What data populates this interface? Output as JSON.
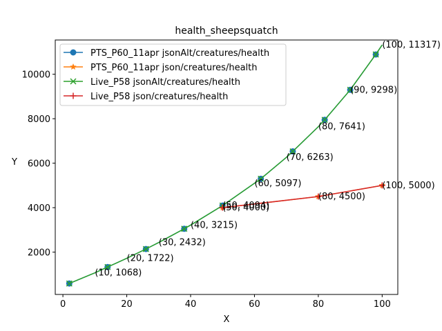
{
  "chart_data": {
    "type": "line",
    "title": "health_sheepsquatch",
    "xlabel": "X",
    "ylabel": "Y",
    "xlim": [
      -2.4,
      104.9
    ],
    "ylim": [
      97,
      11540
    ],
    "xticks": [
      0,
      20,
      40,
      60,
      80,
      100
    ],
    "yticks": [
      2000,
      4000,
      6000,
      8000,
      10000
    ],
    "xtick_labels": [
      "0",
      "20",
      "40",
      "60",
      "80",
      "100"
    ],
    "ytick_labels": [
      "2000",
      "4000",
      "6000",
      "8000",
      "10000"
    ],
    "legend_position": "upper-left",
    "series": [
      {
        "name": "PTS_P60_11apr jsonAlt/creatures/health",
        "color": "#1f77b4",
        "marker": "circle",
        "x": [
          2,
          10,
          14,
          20,
          26,
          30,
          38,
          40,
          50,
          60,
          62,
          70,
          72,
          80,
          82,
          90,
          98,
          100
        ],
        "y": [
          590,
          1068,
          1330,
          1722,
          2140,
          2432,
          3050,
          3215,
          4094,
          5097,
          5300,
          6263,
          6530,
          7641,
          7950,
          9298,
          10890,
          11317
        ],
        "marker_x": [
          2,
          14,
          26,
          38,
          50,
          62,
          72,
          82,
          90,
          98
        ]
      },
      {
        "name": "PTS_P60_11apr json/creatures/health",
        "color": "#ff7f0e",
        "marker": "star",
        "x": [
          50,
          80,
          100
        ],
        "y": [
          4000,
          4500,
          5000
        ],
        "marker_x": [
          50,
          80,
          100
        ]
      },
      {
        "name": "Live_P58 jsonAlt/creatures/health",
        "color": "#2ca02c",
        "marker": "x",
        "x": [
          2,
          10,
          14,
          20,
          26,
          30,
          38,
          40,
          50,
          60,
          62,
          70,
          72,
          80,
          82,
          90,
          98,
          100
        ],
        "y": [
          590,
          1068,
          1330,
          1722,
          2140,
          2432,
          3050,
          3215,
          4094,
          5097,
          5300,
          6263,
          6530,
          7641,
          7950,
          9298,
          10890,
          11317
        ],
        "marker_x": [
          2,
          14,
          26,
          38,
          50,
          62,
          72,
          82,
          90,
          98
        ]
      },
      {
        "name": "Live_P58 json/creatures/health",
        "color": "#d62728",
        "marker": "plus",
        "x": [
          50,
          80,
          100
        ],
        "y": [
          4000,
          4500,
          5000
        ],
        "marker_x": [
          50,
          80,
          100
        ]
      }
    ],
    "annotations": [
      {
        "text": "(10, 1068)",
        "x": 10,
        "y": 1068
      },
      {
        "text": "(20, 1722)",
        "x": 20,
        "y": 1722
      },
      {
        "text": "(30, 2432)",
        "x": 30,
        "y": 2432
      },
      {
        "text": "(40, 3215)",
        "x": 40,
        "y": 3215
      },
      {
        "text": "(50, 4094)",
        "x": 50,
        "y": 4094
      },
      {
        "text": "(50, 4000)",
        "x": 50,
        "y": 4000
      },
      {
        "text": "(60, 5097)",
        "x": 60,
        "y": 5097
      },
      {
        "text": "(70, 6263)",
        "x": 70,
        "y": 6263
      },
      {
        "text": "(80, 7641)",
        "x": 80,
        "y": 7641
      },
      {
        "text": "(80, 4500)",
        "x": 80,
        "y": 4500
      },
      {
        "text": "(90, 9298)",
        "x": 90,
        "y": 9298
      },
      {
        "text": "(100, 11317)",
        "x": 100,
        "y": 11317
      },
      {
        "text": "(100, 5000)",
        "x": 100,
        "y": 5000
      }
    ]
  }
}
